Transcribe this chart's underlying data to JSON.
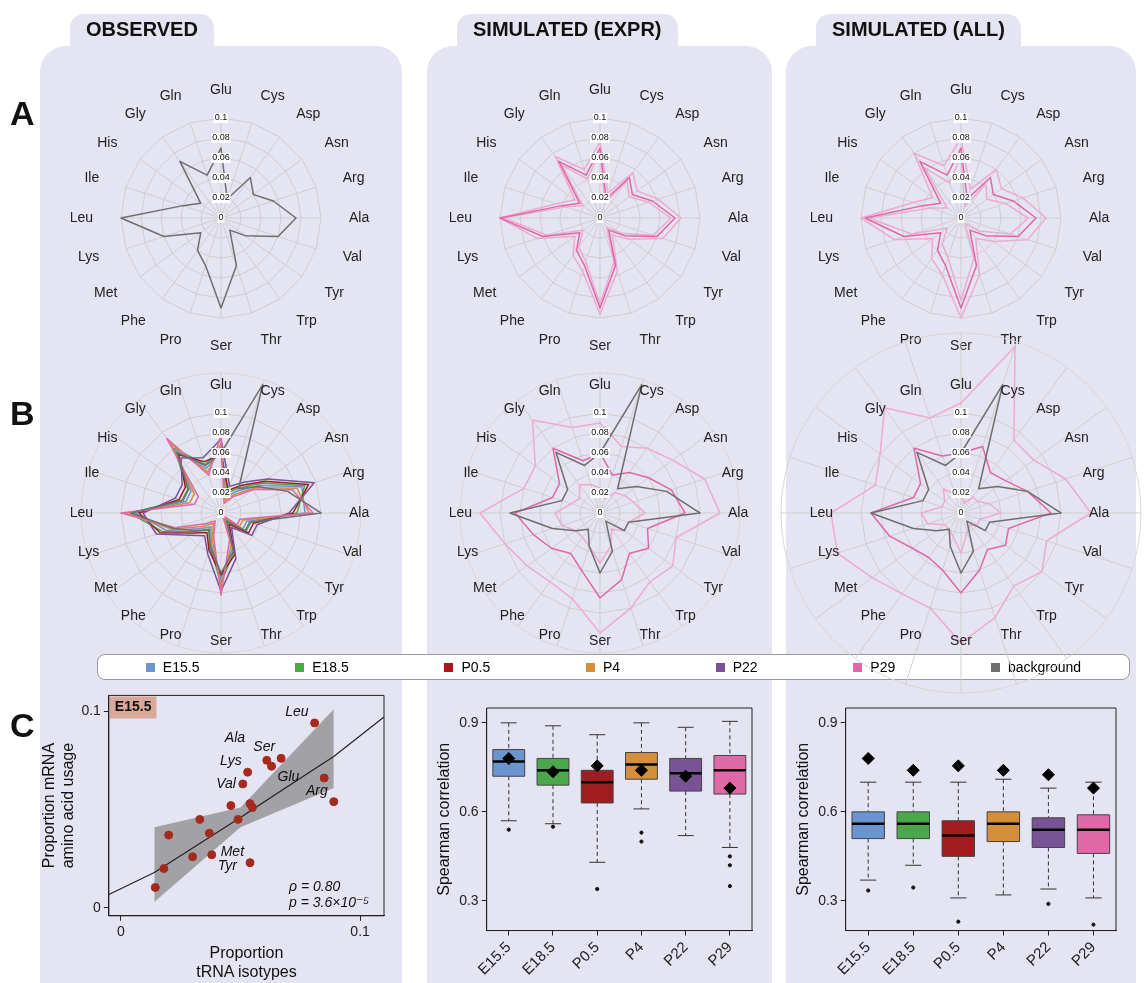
{
  "chart_data": [
    {
      "type": "radar",
      "title": "OBSERVED",
      "annotations": [
        "A"
      ],
      "categories": [
        "Glu",
        "Cys",
        "Asp",
        "Asn",
        "Arg",
        "Ala",
        "Val",
        "Tyr",
        "Trp",
        "Thr",
        "Ser",
        "Pro",
        "Phe",
        "Met",
        "Lys",
        "Leu",
        "Ile",
        "His",
        "Gly",
        "Gln"
      ],
      "ylim": [
        0,
        0.1
      ],
      "yticks": [
        0,
        0.02,
        0.04,
        0.06,
        0.08,
        0.1
      ],
      "grid": true,
      "series": [
        {
          "color": "#6e6e6e",
          "values": [
            0.07,
            0.02,
            0.05,
            0.04,
            0.055,
            0.075,
            0.06,
            0.03,
            0.015,
            0.05,
            0.09,
            0.05,
            0.04,
            0.025,
            0.06,
            0.1,
            0.04,
            0.025,
            0.07,
            0.045
          ]
        }
      ]
    },
    {
      "type": "radar",
      "title": "SIMULATED (EXPR)",
      "categories": [
        "Glu",
        "Cys",
        "Asp",
        "Asn",
        "Arg",
        "Ala",
        "Val",
        "Tyr",
        "Trp",
        "Thr",
        "Ser",
        "Pro",
        "Phe",
        "Met",
        "Lys",
        "Leu",
        "Ile",
        "His",
        "Gly",
        "Gln"
      ],
      "ylim": [
        0,
        0.1
      ],
      "yticks": [
        0,
        0.02,
        0.04,
        0.06,
        0.08,
        0.1
      ],
      "grid": true,
      "series": [
        {
          "color": "#eeaad0",
          "values": [
            0.076,
            0.026,
            0.056,
            0.046,
            0.061,
            0.081,
            0.066,
            0.036,
            0.021,
            0.056,
            0.096,
            0.056,
            0.046,
            0.031,
            0.066,
            0.1,
            0.046,
            0.031,
            0.076,
            0.051
          ]
        },
        {
          "color": "#eeaad0",
          "values": [
            0.066,
            0.016,
            0.046,
            0.036,
            0.051,
            0.071,
            0.056,
            0.026,
            0.011,
            0.046,
            0.086,
            0.046,
            0.036,
            0.021,
            0.056,
            0.096,
            0.036,
            0.021,
            0.066,
            0.041
          ]
        },
        {
          "color": "#e067a8",
          "values": [
            0.07,
            0.02,
            0.05,
            0.04,
            0.055,
            0.075,
            0.06,
            0.03,
            0.015,
            0.05,
            0.09,
            0.05,
            0.04,
            0.025,
            0.06,
            0.1,
            0.04,
            0.025,
            0.07,
            0.045
          ]
        }
      ]
    },
    {
      "type": "radar",
      "title": "SIMULATED (ALL)",
      "categories": [
        "Glu",
        "Cys",
        "Asp",
        "Asn",
        "Arg",
        "Ala",
        "Val",
        "Tyr",
        "Trp",
        "Thr",
        "Ser",
        "Pro",
        "Phe",
        "Met",
        "Lys",
        "Leu",
        "Ile",
        "His",
        "Gly",
        "Gln"
      ],
      "ylim": [
        0,
        0.1
      ],
      "yticks": [
        0,
        0.02,
        0.04,
        0.06,
        0.08,
        0.1
      ],
      "grid": true,
      "series": [
        {
          "color": "#eeaad0",
          "values": [
            0.08,
            0.03,
            0.06,
            0.05,
            0.065,
            0.085,
            0.07,
            0.04,
            0.025,
            0.06,
            0.1,
            0.06,
            0.05,
            0.035,
            0.07,
            0.1,
            0.05,
            0.035,
            0.08,
            0.055
          ]
        },
        {
          "color": "#eeaad0",
          "values": [
            0.062,
            0.012,
            0.042,
            0.032,
            0.047,
            0.067,
            0.052,
            0.022,
            0.007,
            0.042,
            0.082,
            0.042,
            0.032,
            0.017,
            0.052,
            0.092,
            0.032,
            0.017,
            0.062,
            0.037
          ]
        },
        {
          "color": "#e067a8",
          "values": [
            0.07,
            0.02,
            0.05,
            0.04,
            0.055,
            0.075,
            0.06,
            0.03,
            0.015,
            0.05,
            0.09,
            0.05,
            0.04,
            0.025,
            0.06,
            0.096,
            0.04,
            0.025,
            0.07,
            0.045
          ]
        }
      ]
    },
    {
      "type": "radar",
      "annotations": [
        "B"
      ],
      "legend": "bottom",
      "categories": [
        "Glu",
        "Cys",
        "Asp",
        "Asn",
        "Arg",
        "Ala",
        "Val",
        "Tyr",
        "Trp",
        "Thr",
        "Ser",
        "Pro",
        "Phe",
        "Met",
        "Lys",
        "Leu",
        "Ile",
        "His",
        "Gly",
        "Gln"
      ],
      "ylim": [
        0,
        0.14
      ],
      "yticks": [
        0,
        0.02,
        0.04,
        0.06,
        0.08,
        0.1
      ],
      "grid": true,
      "series": [
        {
          "name": "E15.5",
          "color": "#6a95d0",
          "values": [
            0.062,
            0.017,
            0.027,
            0.047,
            0.085,
            0.084,
            0.027,
            0.027,
            0.012,
            0.037,
            0.066,
            0.032,
            0.017,
            0.027,
            0.057,
            0.086,
            0.037,
            0.037,
            0.076,
            0.047
          ]
        },
        {
          "name": "E18.5",
          "color": "#4aa84a",
          "values": [
            0.066,
            0.021,
            0.031,
            0.051,
            0.088,
            0.076,
            0.031,
            0.031,
            0.008,
            0.041,
            0.07,
            0.036,
            0.021,
            0.031,
            0.061,
            0.091,
            0.041,
            0.041,
            0.08,
            0.051
          ]
        },
        {
          "name": "P0.5",
          "color": "#a01c20",
          "values": [
            0.058,
            0.024,
            0.034,
            0.054,
            0.092,
            0.072,
            0.034,
            0.034,
            0.014,
            0.044,
            0.062,
            0.039,
            0.024,
            0.034,
            0.064,
            0.082,
            0.044,
            0.044,
            0.072,
            0.054
          ]
        },
        {
          "name": "P4",
          "color": "#d58f3a",
          "values": [
            0.07,
            0.013,
            0.023,
            0.043,
            0.08,
            0.088,
            0.023,
            0.023,
            0.005,
            0.033,
            0.074,
            0.028,
            0.013,
            0.023,
            0.052,
            0.095,
            0.033,
            0.033,
            0.086,
            0.043
          ]
        },
        {
          "name": "P22",
          "color": "#7a5296",
          "values": [
            0.074,
            0.028,
            0.038,
            0.058,
            0.098,
            0.068,
            0.038,
            0.038,
            0.018,
            0.048,
            0.078,
            0.043,
            0.028,
            0.038,
            0.068,
            0.078,
            0.048,
            0.048,
            0.068,
            0.058
          ]
        },
        {
          "name": "P29",
          "color": "#e067a8",
          "values": [
            0.078,
            0.01,
            0.02,
            0.04,
            0.075,
            0.092,
            0.02,
            0.02,
            0.003,
            0.028,
            0.082,
            0.024,
            0.01,
            0.018,
            0.048,
            0.1,
            0.028,
            0.028,
            0.092,
            0.04
          ]
        },
        {
          "name": "background",
          "color": "#6e6e6e",
          "values": [
            0.06,
            0.135,
            0.03,
            0.045,
            0.07,
            0.1,
            0.03,
            0.03,
            0.01,
            0.04,
            0.06,
            0.035,
            0.02,
            0.03,
            0.05,
            0.09,
            0.04,
            0.04,
            0.075,
            0.05
          ]
        }
      ]
    },
    {
      "type": "radar",
      "categories": [
        "Glu",
        "Cys",
        "Asp",
        "Asn",
        "Arg",
        "Ala",
        "Val",
        "Tyr",
        "Trp",
        "Thr",
        "Ser",
        "Pro",
        "Phe",
        "Met",
        "Lys",
        "Leu",
        "Ile",
        "His",
        "Gly",
        "Gln"
      ],
      "ylim": [
        0,
        0.14
      ],
      "yticks": [
        0,
        0.02,
        0.04,
        0.06,
        0.08,
        0.1
      ],
      "grid": true,
      "series": [
        {
          "color": "#eeaad0",
          "values": [
            0.09,
            0.07,
            0.08,
            0.09,
            0.11,
            0.12,
            0.08,
            0.09,
            0.085,
            0.1,
            0.12,
            0.09,
            0.085,
            0.09,
            0.1,
            0.12,
            0.08,
            0.08,
            0.115,
            0.09
          ]
        },
        {
          "color": "#eeaad0",
          "values": [
            0.025,
            0.015,
            0.025,
            0.03,
            0.035,
            0.045,
            0.03,
            0.03,
            0.02,
            0.035,
            0.05,
            0.035,
            0.03,
            0.03,
            0.04,
            0.045,
            0.03,
            0.025,
            0.035,
            0.03
          ]
        },
        {
          "color": "#e067a8",
          "values": [
            0.06,
            0.04,
            0.05,
            0.06,
            0.075,
            0.085,
            0.05,
            0.06,
            0.05,
            0.07,
            0.085,
            0.06,
            0.05,
            0.06,
            0.07,
            0.085,
            0.05,
            0.05,
            0.08,
            0.055
          ]
        },
        {
          "color": "#6e6e6e",
          "values": [
            0.06,
            0.135,
            0.03,
            0.045,
            0.07,
            0.1,
            0.03,
            0.03,
            0.01,
            0.04,
            0.06,
            0.035,
            0.02,
            0.03,
            0.05,
            0.09,
            0.04,
            0.04,
            0.075,
            0.05
          ]
        }
      ]
    },
    {
      "type": "radar",
      "categories": [
        "Glu",
        "Cys",
        "Asp",
        "Asn",
        "Arg",
        "Ala",
        "Val",
        "Tyr",
        "Trp",
        "Thr",
        "Ser",
        "Pro",
        "Phe",
        "Met",
        "Lys",
        "Leu",
        "Ile",
        "His",
        "Gly",
        "Gln"
      ],
      "ylim": [
        0,
        0.18
      ],
      "yticks": [
        0,
        0.02,
        0.04,
        0.06,
        0.08,
        0.1
      ],
      "grid": true,
      "series": [
        {
          "color": "#eeaad0",
          "values": [
            0.11,
            0.175,
            0.09,
            0.09,
            0.11,
            0.13,
            0.09,
            0.1,
            0.09,
            0.11,
            0.13,
            0.1,
            0.1,
            0.11,
            0.13,
            0.13,
            0.09,
            0.1,
            0.13,
            0.1
          ]
        },
        {
          "color": "#eeaad0",
          "values": [
            0.02,
            0.01,
            0.02,
            0.02,
            0.03,
            0.04,
            0.02,
            0.02,
            0.015,
            0.02,
            0.04,
            0.025,
            0.02,
            0.02,
            0.035,
            0.04,
            0.02,
            0.02,
            0.03,
            0.02
          ]
        },
        {
          "color": "#e067a8",
          "values": [
            0.06,
            0.07,
            0.05,
            0.055,
            0.07,
            0.09,
            0.05,
            0.055,
            0.045,
            0.06,
            0.08,
            0.06,
            0.055,
            0.06,
            0.075,
            0.09,
            0.05,
            0.05,
            0.08,
            0.06
          ]
        },
        {
          "color": "#6e6e6e",
          "values": [
            0.06,
            0.135,
            0.03,
            0.045,
            0.07,
            0.1,
            0.03,
            0.03,
            0.01,
            0.04,
            0.06,
            0.035,
            0.02,
            0.03,
            0.05,
            0.09,
            0.04,
            0.04,
            0.075,
            0.05
          ]
        }
      ]
    },
    {
      "type": "scatter",
      "annotations": [
        "C",
        "E15.5",
        "ρ = 0.80",
        "p = 3.6×10⁻⁵",
        {
          "text": "Leu",
          "x": 0.081,
          "y": 0.094
        },
        {
          "text": "Ser",
          "x": 0.067,
          "y": 0.076
        },
        {
          "text": "Ala",
          "x": 0.061,
          "y": 0.075
        },
        {
          "text": "Lys",
          "x": 0.053,
          "y": 0.069
        },
        {
          "text": "Glu",
          "x": 0.063,
          "y": 0.072
        },
        {
          "text": "Val",
          "x": 0.051,
          "y": 0.063
        },
        {
          "text": "Arg",
          "x": 0.089,
          "y": 0.054
        },
        {
          "text": "Met",
          "x": 0.054,
          "y": 0.023
        },
        {
          "text": "Tyr",
          "x": 0.038,
          "y": 0.027
        }
      ],
      "xlabel": "Proportion\ntRNA isotypes",
      "ylabel": "Proportion mRNA\namino acid usage",
      "xlim": [
        -0.005,
        0.11
      ],
      "ylim": [
        -0.004,
        0.108
      ],
      "xticks": [
        0,
        0.1
      ],
      "yticks": [
        0,
        0.1
      ],
      "series": [
        {
          "type": "scatter",
          "color": "#a52a1e",
          "x": [
            0.0144,
            0.018,
            0.02,
            0.03,
            0.033,
            0.037,
            0.038,
            0.046,
            0.049,
            0.054,
            0.055,
            0.051,
            0.053,
            0.061,
            0.063,
            0.067,
            0.081,
            0.085,
            0.089,
            0.054
          ],
          "values": [
            0.0104,
            0.02,
            0.037,
            0.026,
            0.045,
            0.038,
            0.027,
            0.052,
            0.045,
            0.053,
            0.051,
            0.063,
            0.069,
            0.075,
            0.072,
            0.076,
            0.094,
            0.066,
            0.054,
            0.023
          ]
        },
        {
          "type": "line",
          "color": "#222222",
          "x": [
            -0.005,
            0.014,
            0.05,
            0.089,
            0.11
          ],
          "values": [
            0.0068,
            0.018,
            0.046,
            0.077,
            0.097
          ],
          "lower": [
            null,
            0.003,
            0.041,
            0.061,
            null
          ],
          "upper": [
            null,
            0.041,
            0.051,
            0.101,
            null
          ]
        }
      ]
    },
    {
      "type": "box",
      "ylabel": "Spearman correlation",
      "categories": [
        "E15.5",
        "E18.5",
        "P0.5",
        "P4",
        "P22",
        "P29"
      ],
      "colors": [
        "#6a95d0",
        "#4aa84a",
        "#a01c20",
        "#d58f3a",
        "#7a5296",
        "#e067a8"
      ],
      "ylim": [
        0.2,
        0.95
      ],
      "yticks": [
        0.3,
        0.6,
        0.9
      ],
      "boxes": [
        {
          "low": 0.57,
          "q1": 0.72,
          "median": 0.77,
          "q3": 0.81,
          "high": 0.9,
          "outliers": [
            0.54
          ]
        },
        {
          "low": 0.56,
          "q1": 0.69,
          "median": 0.74,
          "q3": 0.78,
          "high": 0.89,
          "outliers": [
            0.55
          ]
        },
        {
          "low": 0.43,
          "q1": 0.63,
          "median": 0.7,
          "q3": 0.74,
          "high": 0.86,
          "outliers": [
            0.34
          ]
        },
        {
          "low": 0.61,
          "q1": 0.71,
          "median": 0.76,
          "q3": 0.8,
          "high": 0.9,
          "outliers": [
            0.53,
            0.5
          ]
        },
        {
          "low": 0.52,
          "q1": 0.67,
          "median": 0.73,
          "q3": 0.78,
          "high": 0.885
        },
        {
          "low": 0.48,
          "q1": 0.66,
          "median": 0.74,
          "q3": 0.79,
          "high": 0.905,
          "outliers": [
            0.45,
            0.42,
            0.35
          ]
        }
      ],
      "series": [
        {
          "type": "scatter",
          "marker": "diamond",
          "color": "#000000",
          "x": [
            "E15.5",
            "E18.5",
            "P0.5",
            "P4",
            "P22",
            "P29"
          ],
          "values": [
            0.78,
            0.735,
            0.755,
            0.74,
            0.72,
            0.68
          ]
        }
      ]
    },
    {
      "type": "box",
      "ylabel": "Spearman correlation",
      "categories": [
        "E15.5",
        "E18.5",
        "P0.5",
        "P4",
        "P22",
        "P29"
      ],
      "colors": [
        "#6a95d0",
        "#4aa84a",
        "#a01c20",
        "#d58f3a",
        "#7a5296",
        "#e067a8"
      ],
      "ylim": [
        0.2,
        0.95
      ],
      "yticks": [
        0.3,
        0.6,
        0.9
      ],
      "boxes": [
        {
          "low": 0.37,
          "q1": 0.51,
          "median": 0.56,
          "q3": 0.6,
          "high": 0.7,
          "outliers": [
            0.335
          ]
        },
        {
          "low": 0.42,
          "q1": 0.51,
          "median": 0.56,
          "q3": 0.6,
          "high": 0.7,
          "outliers": [
            0.345
          ]
        },
        {
          "low": 0.31,
          "q1": 0.45,
          "median": 0.52,
          "q3": 0.57,
          "high": 0.7,
          "outliers": [
            0.23
          ]
        },
        {
          "low": 0.32,
          "q1": 0.5,
          "median": 0.56,
          "q3": 0.6,
          "high": 0.71
        },
        {
          "low": 0.34,
          "q1": 0.48,
          "median": 0.54,
          "q3": 0.58,
          "high": 0.68,
          "outliers": [
            0.29
          ]
        },
        {
          "low": 0.31,
          "q1": 0.46,
          "median": 0.54,
          "q3": 0.59,
          "high": 0.7,
          "outliers": [
            0.22
          ]
        }
      ],
      "series": [
        {
          "type": "scatter",
          "marker": "diamond",
          "color": "#000000",
          "x": [
            "E15.5",
            "E18.5",
            "P0.5",
            "P4",
            "P22",
            "P29"
          ],
          "values": [
            0.78,
            0.74,
            0.755,
            0.74,
            0.725,
            0.68
          ]
        }
      ]
    }
  ]
}
